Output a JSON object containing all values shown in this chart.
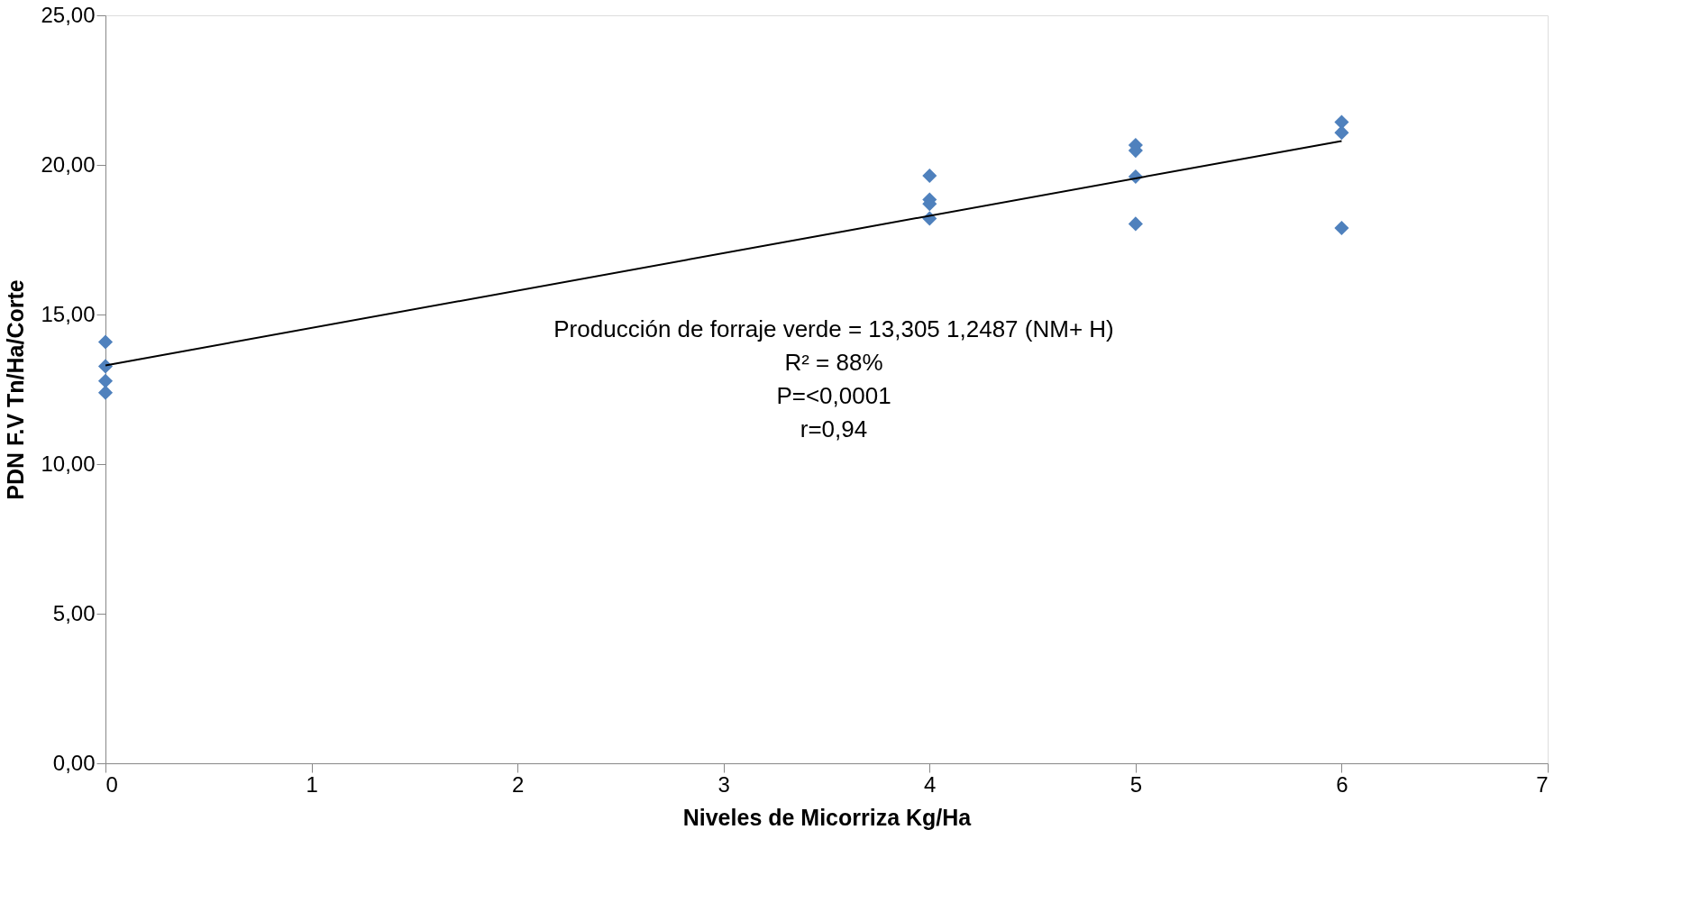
{
  "chart_data": {
    "type": "scatter",
    "xlabel": "Niveles de Micorriza Kg/Ha",
    "ylabel": "PDN F.V Tn/Ha/Corte",
    "series": [
      {
        "type": "scatter",
        "color": "#4f81bd",
        "marker": "diamond",
        "x": [
          0,
          0,
          0,
          0,
          4,
          4,
          4,
          4,
          5,
          5,
          5,
          5,
          6,
          6,
          6
        ],
        "values": [
          14.08,
          13.27,
          12.78,
          12.39,
          19.64,
          18.84,
          18.7,
          18.21,
          20.66,
          20.48,
          19.61,
          18.03,
          21.43,
          21.08,
          17.89
        ]
      },
      {
        "type": "line",
        "color": "#000000",
        "marker": "none",
        "x": [
          0,
          6
        ],
        "values": [
          13.3,
          20.8
        ]
      }
    ],
    "annotations": [
      "Producción de forraje verde = 13,305 1,2487 (NM+ H)",
      "R² = 88%",
      "P=<0,0001",
      "r=0,94"
    ],
    "xlim": [
      0,
      7
    ],
    "xticks": [
      0,
      1,
      2,
      3,
      4,
      5,
      6,
      7
    ],
    "ylim": [
      0,
      25
    ],
    "yticks": [
      {
        "value": 0,
        "label": "0,00"
      },
      {
        "value": 5,
        "label": "5,00"
      },
      {
        "value": 10,
        "label": "10,00"
      },
      {
        "value": 15,
        "label": "15,00"
      },
      {
        "value": 20,
        "label": "20,00"
      },
      {
        "value": 25,
        "label": "25,00"
      }
    ],
    "grid": false
  }
}
